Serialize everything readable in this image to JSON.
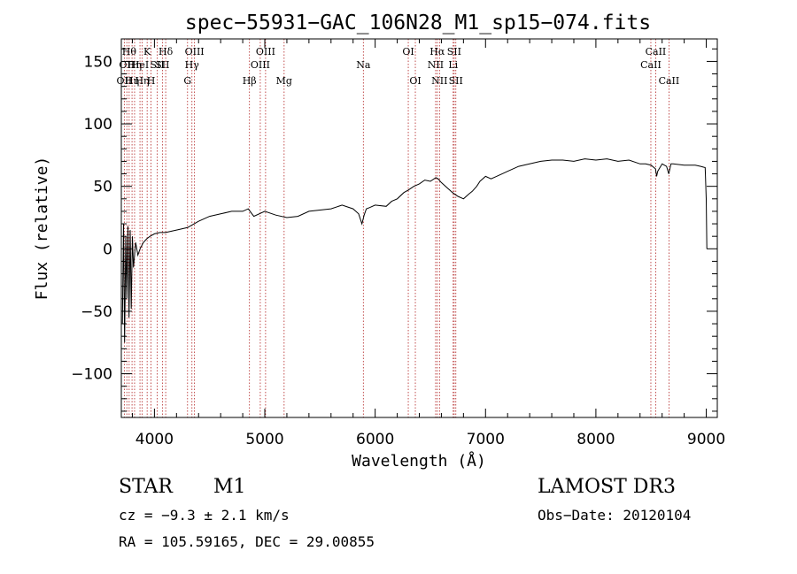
{
  "chart_data": {
    "type": "line",
    "title": "spec−55931−GAC_106N28_M1_sp15−074.fits",
    "xlabel": "Wavelength (Å)",
    "ylabel": "Flux (relative)",
    "xlim": [
      3700,
      9100
    ],
    "ylim": [
      -135,
      168
    ],
    "x_ticks": [
      {
        "value": 4000,
        "label": "4000"
      },
      {
        "value": 5000,
        "label": "5000"
      },
      {
        "value": 6000,
        "label": "6000"
      },
      {
        "value": 7000,
        "label": "7000"
      },
      {
        "value": 8000,
        "label": "8000"
      },
      {
        "value": 9000,
        "label": "9000"
      }
    ],
    "y_ticks": [
      {
        "value": -100,
        "label": "−100"
      },
      {
        "value": -50,
        "label": "−50"
      },
      {
        "value": 0,
        "label": "0"
      },
      {
        "value": 50,
        "label": "50"
      },
      {
        "value": 100,
        "label": "100"
      },
      {
        "value": 150,
        "label": "150"
      }
    ],
    "line_color": "#000000",
    "marker_color": "#b22222",
    "series": [
      {
        "name": "flux",
        "x": [
          3710,
          3720,
          3730,
          3740,
          3750,
          3760,
          3770,
          3780,
          3790,
          3800,
          3810,
          3830,
          3850,
          3870,
          3900,
          3930,
          3960,
          4000,
          4050,
          4100,
          4150,
          4200,
          4300,
          4400,
          4500,
          4600,
          4700,
          4800,
          4850,
          4900,
          5000,
          5100,
          5200,
          5300,
          5400,
          5500,
          5600,
          5700,
          5800,
          5850,
          5880,
          5900,
          5920,
          5950,
          6000,
          6100,
          6150,
          6200,
          6260,
          6300,
          6350,
          6400,
          6450,
          6500,
          6550,
          6570,
          6600,
          6650,
          6700,
          6750,
          6800,
          6850,
          6880,
          6920,
          6950,
          7000,
          7050,
          7100,
          7150,
          7200,
          7300,
          7400,
          7500,
          7600,
          7700,
          7800,
          7900,
          8000,
          8100,
          8200,
          8300,
          8400,
          8450,
          8500,
          8540,
          8550,
          8560,
          8600,
          8640,
          8660,
          8680,
          8700,
          8800,
          8900,
          8950,
          8990,
          9000,
          9005
        ],
        "y": [
          -60,
          20,
          -75,
          10,
          -40,
          18,
          -55,
          15,
          -48,
          10,
          -15,
          5,
          -5,
          0,
          5,
          8,
          10,
          12,
          13,
          13,
          14,
          15,
          17,
          22,
          26,
          28,
          30,
          30,
          32,
          26,
          30,
          27,
          25,
          26,
          30,
          31,
          32,
          35,
          32,
          28,
          20,
          27,
          32,
          33,
          35,
          34,
          38,
          40,
          45,
          47,
          50,
          52,
          55,
          54,
          57,
          56,
          53,
          49,
          45,
          42,
          40,
          44,
          46,
          50,
          54,
          58,
          56,
          58,
          60,
          62,
          66,
          68,
          70,
          71,
          71,
          70,
          72,
          71,
          72,
          70,
          71,
          68,
          68,
          67,
          64,
          58,
          62,
          68,
          66,
          60,
          68,
          68,
          67,
          67,
          66,
          65,
          40,
          0
        ]
      }
    ],
    "lines": [
      {
        "wl": 3727,
        "label": "OII",
        "row": 2
      },
      {
        "wl": 3750,
        "label": "OII",
        "row": 1
      },
      {
        "wl": 3771,
        "label": "Hθ",
        "row": 0
      },
      {
        "wl": 3797,
        "label": "Hη",
        "row": 2
      },
      {
        "wl": 3820,
        "label": "Hη",
        "row": 1
      },
      {
        "wl": 3869,
        "label": "HeI",
        "row": 1
      },
      {
        "wl": 3889,
        "label": "Hη",
        "row": 2
      },
      {
        "wl": 3934,
        "label": "K",
        "row": 0
      },
      {
        "wl": 3969,
        "label": "H",
        "row": 2
      },
      {
        "wl": 4026,
        "label": "SII",
        "row": 1
      },
      {
        "wl": 4072,
        "label": "SII",
        "row": 1
      },
      {
        "wl": 4102,
        "label": "Hδ",
        "row": 0
      },
      {
        "wl": 4300,
        "label": "G",
        "row": 2
      },
      {
        "wl": 4340,
        "label": "Hγ",
        "row": 1
      },
      {
        "wl": 4363,
        "label": "OIII",
        "row": 0
      },
      {
        "wl": 4861,
        "label": "Hβ",
        "row": 2
      },
      {
        "wl": 4959,
        "label": "OIII",
        "row": 1
      },
      {
        "wl": 5007,
        "label": "OIII",
        "row": 0
      },
      {
        "wl": 5175,
        "label": "Mg",
        "row": 2
      },
      {
        "wl": 5893,
        "label": "Na",
        "row": 1
      },
      {
        "wl": 6300,
        "label": "OI",
        "row": 0
      },
      {
        "wl": 6364,
        "label": "OI",
        "row": 2
      },
      {
        "wl": 6548,
        "label": "NII",
        "row": 1
      },
      {
        "wl": 6563,
        "label": "Hα",
        "row": 0
      },
      {
        "wl": 6583,
        "label": "NII",
        "row": 2
      },
      {
        "wl": 6707,
        "label": "Li",
        "row": 1
      },
      {
        "wl": 6716,
        "label": "SII",
        "row": 0
      },
      {
        "wl": 6731,
        "label": "SII",
        "row": 2
      },
      {
        "wl": 8498,
        "label": "CaII",
        "row": 1
      },
      {
        "wl": 8542,
        "label": "CaII",
        "row": 0
      },
      {
        "wl": 8662,
        "label": "CaII",
        "row": 2
      }
    ]
  },
  "info": {
    "object_class": "STAR",
    "subclass": "M1",
    "survey": "LAMOST DR3",
    "cz": "cz = −9.3 ± 2.1 km/s",
    "obs_date": "Obs−Date: 20120104",
    "radec": "RA = 105.59165, DEC =  29.00855"
  }
}
